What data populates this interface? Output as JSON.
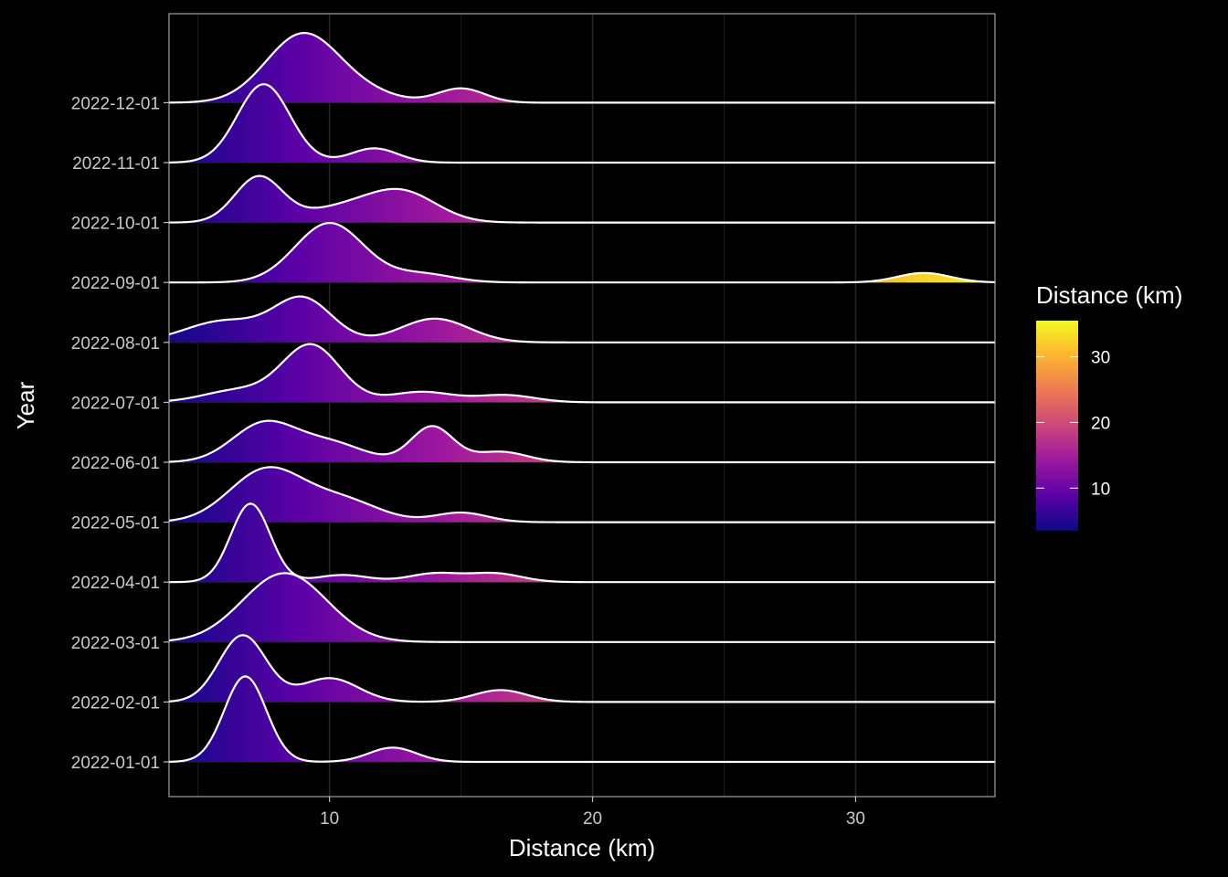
{
  "chart_data": {
    "type": "ridgeline",
    "xlabel": "Distance (km)",
    "ylabel": "Year",
    "xlim": [
      3.9,
      35.3
    ],
    "x_ticks": [
      10,
      20,
      30
    ],
    "grid": true,
    "legend": {
      "title": "Distance (km)",
      "position": "right",
      "range": [
        3.5,
        35.5
      ],
      "ticks": [
        10,
        20,
        30
      ],
      "colors": [
        "#0d0887",
        "#5c01a6",
        "#9c179e",
        "#cc4778",
        "#ed7953",
        "#fdb42f",
        "#f0f921"
      ]
    },
    "series": [
      {
        "name": "2022-01-01",
        "peaks": [
          {
            "mu": 6.8,
            "sd": 0.8,
            "h": 1.8
          },
          {
            "mu": 12.4,
            "sd": 0.9,
            "h": 0.3
          }
        ]
      },
      {
        "name": "2022-02-01",
        "peaks": [
          {
            "mu": 6.7,
            "sd": 0.9,
            "h": 1.4
          },
          {
            "mu": 10.0,
            "sd": 1.1,
            "h": 0.5
          },
          {
            "mu": 16.5,
            "sd": 1.0,
            "h": 0.25
          }
        ]
      },
      {
        "name": "2022-03-01",
        "peaks": [
          {
            "mu": 8.3,
            "sd": 1.6,
            "h": 1.45
          }
        ]
      },
      {
        "name": "2022-04-01",
        "peaks": [
          {
            "mu": 7.0,
            "sd": 0.75,
            "h": 1.65
          },
          {
            "mu": 10.5,
            "sd": 1.0,
            "h": 0.15
          },
          {
            "mu": 14.0,
            "sd": 1.0,
            "h": 0.18
          },
          {
            "mu": 16.3,
            "sd": 1.0,
            "h": 0.18
          }
        ]
      },
      {
        "name": "2022-05-01",
        "peaks": [
          {
            "mu": 7.6,
            "sd": 1.4,
            "h": 1.1
          },
          {
            "mu": 10.5,
            "sd": 1.4,
            "h": 0.45
          },
          {
            "mu": 15.0,
            "sd": 1.0,
            "h": 0.2
          }
        ]
      },
      {
        "name": "2022-06-01",
        "peaks": [
          {
            "mu": 7.5,
            "sd": 1.2,
            "h": 0.8
          },
          {
            "mu": 10.0,
            "sd": 1.3,
            "h": 0.4
          },
          {
            "mu": 13.9,
            "sd": 0.8,
            "h": 0.75
          },
          {
            "mu": 16.5,
            "sd": 1.0,
            "h": 0.22
          }
        ]
      },
      {
        "name": "2022-07-01",
        "peaks": [
          {
            "mu": 6.5,
            "sd": 1.3,
            "h": 0.25
          },
          {
            "mu": 9.3,
            "sd": 1.1,
            "h": 1.2
          },
          {
            "mu": 13.5,
            "sd": 1.2,
            "h": 0.22
          },
          {
            "mu": 16.7,
            "sd": 1.1,
            "h": 0.15
          }
        ]
      },
      {
        "name": "2022-08-01",
        "peaks": [
          {
            "mu": 6.0,
            "sd": 1.5,
            "h": 0.45
          },
          {
            "mu": 9.0,
            "sd": 1.1,
            "h": 0.9
          },
          {
            "mu": 14.0,
            "sd": 1.3,
            "h": 0.5
          }
        ]
      },
      {
        "name": "2022-09-01",
        "peaks": [
          {
            "mu": 10.0,
            "sd": 1.3,
            "h": 1.25
          },
          {
            "mu": 13.5,
            "sd": 1.2,
            "h": 0.18
          },
          {
            "mu": 32.6,
            "sd": 1.0,
            "h": 0.2
          }
        ]
      },
      {
        "name": "2022-10-01",
        "peaks": [
          {
            "mu": 7.3,
            "sd": 0.9,
            "h": 0.95
          },
          {
            "mu": 10.5,
            "sd": 1.5,
            "h": 0.3
          },
          {
            "mu": 12.8,
            "sd": 1.3,
            "h": 0.6
          }
        ]
      },
      {
        "name": "2022-11-01",
        "peaks": [
          {
            "mu": 7.5,
            "sd": 1.0,
            "h": 1.65
          },
          {
            "mu": 11.7,
            "sd": 0.9,
            "h": 0.3
          }
        ]
      },
      {
        "name": "2022-12-01",
        "peaks": [
          {
            "mu": 9.0,
            "sd": 1.4,
            "h": 1.45
          },
          {
            "mu": 11.5,
            "sd": 1.2,
            "h": 0.15
          },
          {
            "mu": 15.0,
            "sd": 0.9,
            "h": 0.3
          }
        ]
      }
    ]
  }
}
